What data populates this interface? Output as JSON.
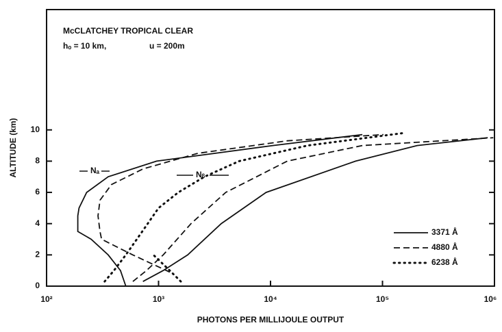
{
  "chart_data": {
    "type": "line",
    "annotations": [
      "McCLATCHEY TROPICAL CLEAR",
      "hₒ = 10 km,",
      "u = 200m",
      "Nₐ",
      "Nᵦ"
    ],
    "xlabel": "PHOTONS PER MILLIJOULE OUTPUT",
    "ylabel": "ALTITUDE (km)",
    "xscale": "log",
    "xlim": [
      100,
      1000000
    ],
    "ylim": [
      0,
      17.7
    ],
    "xticks": [
      {
        "value": 100,
        "label": "10²"
      },
      {
        "value": 1000,
        "label": "10³"
      },
      {
        "value": 10000,
        "label": "10⁴"
      },
      {
        "value": 100000,
        "label": "10⁵"
      },
      {
        "value": 1000000,
        "label": "10⁶"
      }
    ],
    "yticks": [
      0,
      2,
      4,
      6,
      8,
      10
    ],
    "legend": "lower right",
    "series": [
      {
        "name": "3371 Å",
        "color": "#111111",
        "dash": "solid",
        "curves": [
          {
            "x": [
              510,
              457,
              355,
              250,
              190,
              190,
              195,
              228,
              355,
              960,
              10500,
              66100
            ],
            "y": [
              0,
              1,
              2,
              3,
              3.5,
              4.5,
              5,
              6,
              7,
              8,
              9,
              9.7
            ]
          },
          {
            "x": [
              725,
              1100,
              1820,
              3630,
              9120,
              57500,
              204000,
              871000
            ],
            "y": [
              0.3,
              1,
              2,
              4,
              6,
              8,
              9,
              9.5
            ]
          }
        ]
      },
      {
        "name": "4880 Å",
        "color": "#111111",
        "dash": "dashed",
        "curves": [
          {
            "x": [
              1260,
              590,
              310,
              300,
              288,
              300,
              380,
              725,
              2240,
              14100,
              102000
            ],
            "y": [
              0.9,
              2,
              3,
              3.5,
              4.5,
              5.5,
              6.5,
              7.5,
              8.5,
              9.3,
              9.7
            ]
          },
          {
            "x": [
              590,
              780,
              1100,
              1950,
              3980,
              14100,
              66100,
              977000
            ],
            "y": [
              0.3,
              1,
              2,
              4,
              6,
              8,
              9,
              9.5
            ]
          }
        ]
      },
      {
        "name": "6238 Å",
        "color": "#111111",
        "dash": "dotted",
        "curves": [
          {
            "x": [
              330,
              400,
              510,
              640,
              800,
              1000,
              1500,
              2570,
              5250,
              21400,
              155000
            ],
            "y": [
              0.3,
              1,
              2,
              3,
              4,
              5,
              6,
              7,
              8,
              9,
              9.8
            ]
          },
          {
            "x": [
              1580,
              1260,
              900
            ],
            "y": [
              0.3,
              1,
              2
            ]
          }
        ]
      }
    ]
  }
}
